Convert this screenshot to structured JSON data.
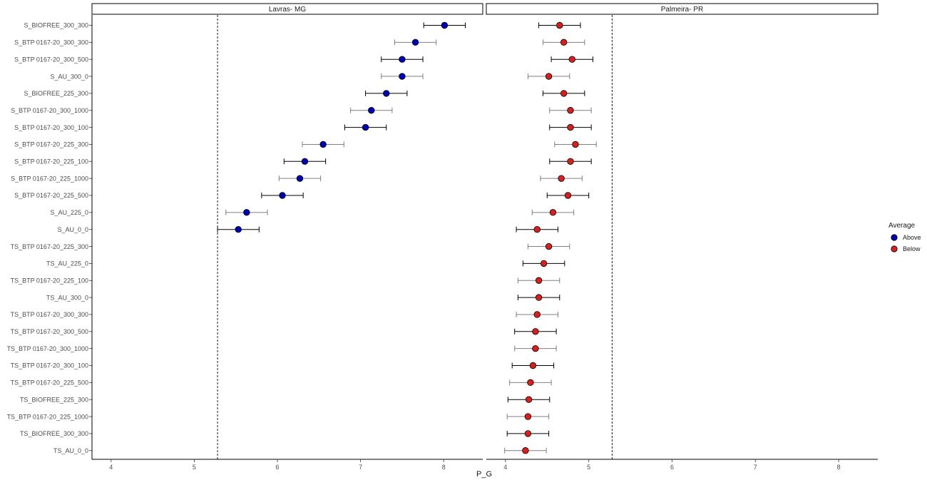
{
  "chart_data": {
    "type": "scatter",
    "subtype": "dot-with-error-bars, faceted",
    "xlabel": "P_G",
    "ylabel": "",
    "xlim": [
      3.77,
      8.47
    ],
    "x_ticks": [
      4,
      5,
      6,
      7,
      8
    ],
    "grid": false,
    "legend": {
      "title": "Average",
      "placement": "right",
      "entries": [
        {
          "label": "Above",
          "color": "#0000b3"
        },
        {
          "label": "Below",
          "color": "#d61f1f"
        }
      ]
    },
    "categories": [
      "S_BIOFREE_300_300",
      "S_BTP 0167-20_300_300",
      "S_BTP 0167-20_300_500",
      "S_AU_300_0",
      "S_BIOFREE_225_300",
      "S_BTP 0167-20_300_1000",
      "S_BTP 0167-20_300_100",
      "S_BTP 0167-20_225_300",
      "S_BTP 0167-20_225_100",
      "S_BTP 0167-20_225_1000",
      "S_BTP 0167-20_225_500",
      "S_AU_225_0",
      "S_AU_0_0",
      "TS_BTP 0167-20_225_300",
      "TS_AU_225_0",
      "TS_BTP 0167-20_225_100",
      "TS_AU_300_0",
      "TS_BTP 0167-20_300_300",
      "TS_BTP 0167-20_300_500",
      "TS_BTP 0167-20_300_1000",
      "TS_BTP 0167-20_300_100",
      "TS_BTP 0167-20_225_500",
      "TS_BIOFREE_225_300",
      "TS_BTP 0167-20_225_1000",
      "TS_BIOFREE_300_300",
      "TS_AU_0_0"
    ],
    "panels": [
      {
        "name": "Lavras- MG",
        "reference_line": 5.28,
        "series": [
          {
            "name": "Above",
            "color": "#0000b3",
            "values": [
              8.01,
              7.66,
              7.5,
              7.5,
              7.31,
              7.13,
              7.06,
              6.55,
              6.33,
              6.27,
              6.06,
              5.63,
              5.53
            ],
            "lower": [
              7.76,
              7.41,
              7.25,
              7.25,
              7.06,
              6.88,
              6.81,
              6.3,
              6.08,
              6.02,
              5.81,
              5.38,
              5.28
            ],
            "upper": [
              8.26,
              7.91,
              7.75,
              7.75,
              7.56,
              7.38,
              7.31,
              6.8,
              6.58,
              6.52,
              6.31,
              5.88,
              5.78
            ]
          }
        ]
      },
      {
        "name": "Palmeira- PR",
        "reference_line": 5.28,
        "series": [
          {
            "name": "Below",
            "color": "#d61f1f",
            "values": [
              4.65,
              4.7,
              4.8,
              4.52,
              4.7,
              4.78,
              4.78,
              4.84,
              4.78,
              4.67,
              4.75,
              4.57,
              4.38,
              4.52,
              4.46,
              4.4,
              4.4,
              4.38,
              4.36,
              4.36,
              4.33,
              4.3,
              4.28,
              4.27,
              4.27,
              4.24
            ],
            "lower": [
              4.4,
              4.45,
              4.55,
              4.27,
              4.45,
              4.53,
              4.53,
              4.59,
              4.53,
              4.42,
              4.5,
              4.32,
              4.13,
              4.27,
              4.21,
              4.15,
              4.15,
              4.13,
              4.11,
              4.11,
              4.08,
              4.05,
              4.03,
              4.02,
              4.02,
              3.99
            ],
            "upper": [
              4.9,
              4.95,
              5.05,
              4.77,
              4.95,
              5.03,
              5.03,
              5.09,
              5.03,
              4.92,
              5.0,
              4.82,
              4.63,
              4.77,
              4.71,
              4.65,
              4.65,
              4.63,
              4.61,
              4.61,
              4.58,
              4.55,
              4.53,
              4.52,
              4.52,
              4.49
            ]
          }
        ]
      }
    ]
  }
}
